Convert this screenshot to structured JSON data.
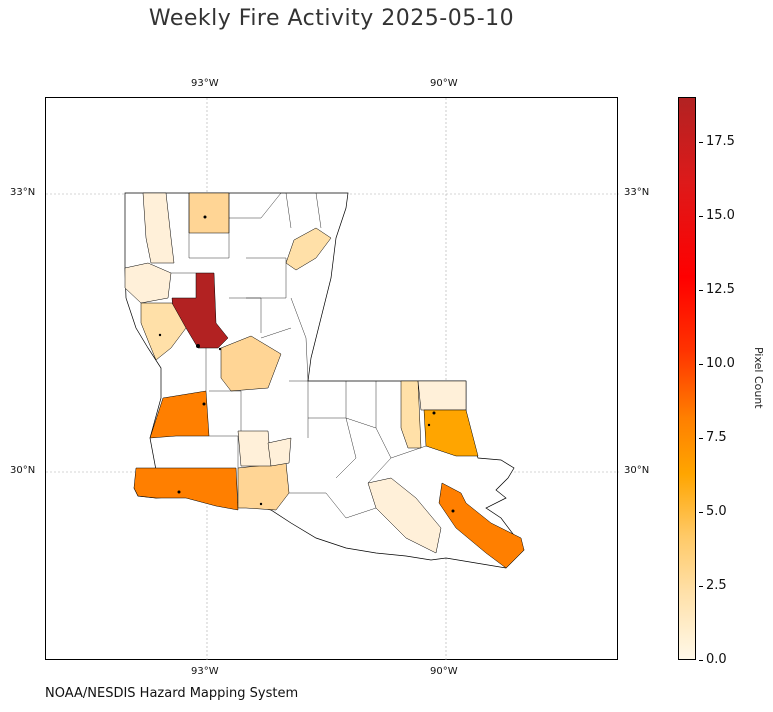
{
  "title": "Weekly Fire Activity 2025-05-10",
  "credit": "NOAA/NESDIS Hazard Mapping System",
  "map": {
    "lon_ticks": [
      "93°W",
      "90°W"
    ],
    "lat_ticks": [
      "33°N",
      "30°N"
    ]
  },
  "colorbar": {
    "label": "Pixel Count",
    "ticks": [
      "0.0",
      "2.5",
      "5.0",
      "7.5",
      "10.0",
      "12.5",
      "15.0",
      "17.5"
    ],
    "range": [
      0,
      19
    ],
    "colors": {
      "low": "#fff8e8",
      "mid": "#ffa500",
      "high": "#b22222"
    }
  }
}
